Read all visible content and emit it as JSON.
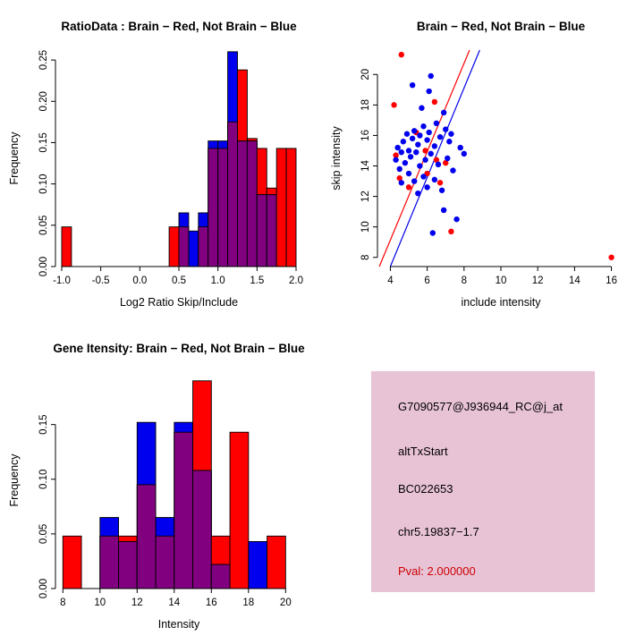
{
  "chart_data": [
    {
      "type": "histogram",
      "title": "RatioData : Brain − Red, Not Brain − Blue",
      "xlabel": "Log2 Ratio Skip/Include",
      "ylabel": "Frequency",
      "xlim": [
        -1.08,
        2.08
      ],
      "ylim": [
        0,
        0.262
      ],
      "xticks": [
        -1.0,
        -0.5,
        0.0,
        0.5,
        1.0,
        1.5,
        2.0
      ],
      "xtick_labels": [
        "-1.0",
        "-0.5",
        "0.0",
        "0.5",
        "1.0",
        "1.5",
        "2.0"
      ],
      "yticks": [
        0,
        0.05,
        0.1,
        0.15,
        0.2,
        0.25
      ],
      "ytick_labels": [
        "0.00",
        "0.05",
        "0.10",
        "0.15",
        "0.20",
        "0.25"
      ],
      "bin_start": -1.0,
      "bin_width": 0.125,
      "overlap_color": "#800080",
      "series": [
        {
          "name": "Brain",
          "color": "#FF0000",
          "values": [
            0.048,
            0,
            0,
            0,
            0,
            0,
            0,
            0,
            0,
            0,
            0,
            0.048,
            0.048,
            0,
            0.048,
            0.143,
            0.143,
            0.175,
            0.238,
            0.155,
            0.143,
            0.095,
            0.143,
            0.143
          ]
        },
        {
          "name": "Not Brain",
          "color": "#0000EE",
          "values": [
            0,
            0,
            0,
            0,
            0,
            0,
            0,
            0,
            0,
            0,
            0,
            0,
            0.065,
            0.043,
            0.065,
            0.152,
            0.152,
            0.26,
            0.152,
            0.152,
            0.087,
            0.087,
            0,
            0
          ]
        }
      ]
    },
    {
      "type": "scatter",
      "title": "Brain − Red, Not Brain − Blue",
      "xlabel": "include intensity",
      "ylabel": "skip intensity",
      "xlim": [
        3.3,
        16.7
      ],
      "ylim": [
        7.4,
        21.6
      ],
      "xticks": [
        4,
        6,
        8,
        10,
        12,
        14,
        16
      ],
      "xtick_labels": [
        "4",
        "6",
        "8",
        "10",
        "12",
        "14",
        "16"
      ],
      "yticks": [
        8,
        10,
        12,
        14,
        16,
        18,
        20
      ],
      "ytick_labels": [
        "8",
        "10",
        "12",
        "14",
        "16",
        "18",
        "20"
      ],
      "series": [
        {
          "name": "Brain",
          "color": "#FF0000",
          "points": [
            [
              4.6,
              21.3
            ],
            [
              4.2,
              18.0
            ],
            [
              6.4,
              18.2
            ],
            [
              4.3,
              14.7
            ],
            [
              4.5,
              13.2
            ],
            [
              5.0,
              12.6
            ],
            [
              5.4,
              16.2
            ],
            [
              5.9,
              15.0
            ],
            [
              6.0,
              13.5
            ],
            [
              6.5,
              14.4
            ],
            [
              6.7,
              12.9
            ],
            [
              7.0,
              14.2
            ],
            [
              7.3,
              9.7
            ],
            [
              16.0,
              8.0
            ]
          ]
        },
        {
          "name": "Not Brain",
          "color": "#0000EE",
          "points": [
            [
              4.3,
              14.4
            ],
            [
              4.4,
              15.2
            ],
            [
              4.5,
              13.8
            ],
            [
              4.6,
              14.9
            ],
            [
              4.6,
              12.9
            ],
            [
              4.7,
              15.6
            ],
            [
              4.8,
              14.2
            ],
            [
              4.9,
              16.1
            ],
            [
              5.0,
              15.0
            ],
            [
              5.0,
              13.5
            ],
            [
              5.1,
              14.6
            ],
            [
              5.2,
              19.3
            ],
            [
              5.2,
              15.8
            ],
            [
              5.3,
              13.0
            ],
            [
              5.3,
              16.3
            ],
            [
              5.4,
              14.9
            ],
            [
              5.5,
              15.4
            ],
            [
              5.5,
              12.2
            ],
            [
              5.6,
              16.0
            ],
            [
              5.6,
              14.0
            ],
            [
              5.7,
              17.8
            ],
            [
              5.8,
              13.3
            ],
            [
              5.8,
              16.6
            ],
            [
              5.9,
              14.4
            ],
            [
              6.0,
              15.7
            ],
            [
              6.0,
              12.6
            ],
            [
              6.1,
              18.9
            ],
            [
              6.1,
              16.2
            ],
            [
              6.2,
              14.8
            ],
            [
              6.2,
              19.9
            ],
            [
              6.3,
              9.6
            ],
            [
              6.4,
              15.3
            ],
            [
              6.4,
              13.1
            ],
            [
              6.5,
              16.8
            ],
            [
              6.6,
              14.1
            ],
            [
              6.7,
              15.9
            ],
            [
              6.8,
              12.4
            ],
            [
              6.9,
              11.1
            ],
            [
              6.9,
              17.5
            ],
            [
              7.0,
              16.4
            ],
            [
              7.1,
              14.5
            ],
            [
              7.2,
              15.6
            ],
            [
              7.3,
              16.1
            ],
            [
              7.4,
              13.7
            ],
            [
              7.6,
              10.5
            ],
            [
              7.8,
              15.2
            ],
            [
              8.0,
              14.8
            ]
          ]
        }
      ],
      "fit_lines": [
        {
          "color": "#FF0000",
          "x1": 3.4,
          "y1": 7.4,
          "x2": 8.3,
          "y2": 21.6
        },
        {
          "color": "#0000EE",
          "x1": 4.0,
          "y1": 7.4,
          "x2": 8.85,
          "y2": 21.6
        }
      ]
    },
    {
      "type": "histogram",
      "title": "Gene Itensity: Brain − Red, Not Brain − Blue",
      "xlabel": "Intensity",
      "ylabel": "Frequency",
      "xlim": [
        7.6,
        20.9
      ],
      "ylim": [
        0,
        0.198
      ],
      "xticks": [
        8,
        10,
        12,
        14,
        16,
        18,
        20
      ],
      "xtick_labels": [
        "8",
        "10",
        "12",
        "14",
        "16",
        "18",
        "20"
      ],
      "yticks": [
        0,
        0.05,
        0.1,
        0.15
      ],
      "ytick_labels": [
        "0.00",
        "0.05",
        "0.10",
        "0.15"
      ],
      "bin_start": 8,
      "bin_width": 1,
      "overlap_color": "#800080",
      "series": [
        {
          "name": "Brain",
          "color": "#FF0000",
          "values": [
            0.048,
            0,
            0.048,
            0.048,
            0.095,
            0.048,
            0.143,
            0.19,
            0.048,
            0.143,
            0,
            0.048,
            0
          ]
        },
        {
          "name": "Not Brain",
          "color": "#0000EE",
          "values": [
            0,
            0,
            0.065,
            0.043,
            0.152,
            0.065,
            0.152,
            0.108,
            0.022,
            0,
            0.043,
            0,
            0
          ]
        }
      ]
    }
  ],
  "info_panel": {
    "bg": "#E8C3D6",
    "lines": [
      {
        "text": "G7090577@J936944_RC@j_at",
        "color": "#000000"
      },
      {
        "text": "altTxStart",
        "color": "#000000"
      },
      {
        "text": "BC022653",
        "color": "#000000"
      },
      {
        "text": "chr5.19837−1.7",
        "color": "#000000"
      },
      {
        "text": "Pval: 2.000000",
        "color": "#CC0000"
      }
    ]
  }
}
